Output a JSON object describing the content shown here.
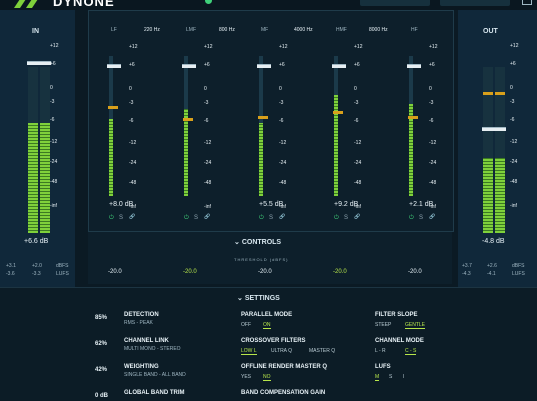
{
  "app": {
    "brand": "DYNONE"
  },
  "input": {
    "title": "IN",
    "scale": [
      "+12",
      "+6",
      "0",
      "-3",
      "-6",
      "-12",
      "-24",
      "-48",
      "-inf"
    ],
    "gain_readout": "+6.6 dB",
    "stats": [
      "+3.1",
      "+2.0",
      "dBFS",
      "-3.6",
      "-3.3",
      "LUFS"
    ]
  },
  "output": {
    "title": "OUT",
    "gain_readout": "-4.8 dB",
    "stats": [
      "+3.7",
      "+2.6",
      "dBFS",
      "-4.3",
      "-4.1",
      "LUFS"
    ]
  },
  "bands": [
    {
      "name": "LF",
      "gain": "+8.0 dB",
      "threshold": "-20.0",
      "active": false
    },
    {
      "name": "LMF",
      "gain": "",
      "threshold": "-20.0",
      "active": true
    },
    {
      "name": "MF",
      "gain": "+5.5 dB",
      "threshold": "-20.0",
      "active": false
    },
    {
      "name": "HMF",
      "gain": "+9.2 dB",
      "threshold": "-20.0",
      "active": true
    },
    {
      "name": "HF",
      "gain": "+2.1 dB",
      "threshold": "-20.0",
      "active": false
    }
  ],
  "crossovers": [
    "220 Hz",
    "800 Hz",
    "4000 Hz",
    "8000 Hz"
  ],
  "band_scale": [
    "+12",
    "+6",
    "0",
    "-3",
    "-6",
    "-12",
    "-24",
    "-48",
    "-inf"
  ],
  "band_icons": {
    "power": "⏻",
    "solo": "S",
    "link": "🔗"
  },
  "controls": {
    "label": "CONTROLS",
    "threshold_label": "THRESHOLD (dBFS)"
  },
  "settings": {
    "label": "SETTINGS",
    "left": [
      {
        "pct": "85%",
        "title": "DETECTION",
        "sub": "RMS - PEAK"
      },
      {
        "pct": "62%",
        "title": "CHANNEL LINK",
        "sub": "MULTI MONO - STEREO"
      },
      {
        "pct": "42%",
        "title": "WEIGHTING",
        "sub": "SINGLE BAND - ALL BAND"
      },
      {
        "pct": "0 dB",
        "title": "GLOBAL BAND TRIM",
        "sub": ""
      }
    ],
    "mid": [
      {
        "title": "PARALLEL MODE",
        "opts": [
          "OFF",
          "ON"
        ],
        "on": 1
      },
      {
        "title": "CROSSOVER FILTERS",
        "opts": [
          "LOW L",
          "ULTRA Q",
          "MASTER Q"
        ],
        "on": 0
      },
      {
        "title": "OFFLINE RENDER MASTER Q",
        "opts": [
          "YES",
          "NO"
        ],
        "on": 1
      },
      {
        "title": "BAND COMPENSATION GAIN",
        "opts": [],
        "on": -1
      }
    ],
    "right": [
      {
        "title": "FILTER SLOPE",
        "opts": [
          "STEEP",
          "GENTLE"
        ],
        "on": 1
      },
      {
        "title": "CHANNEL MODE",
        "opts": [
          "L - R",
          "C - S"
        ],
        "on": 1
      },
      {
        "title": "LUFS",
        "opts": [
          "M",
          "S",
          "I"
        ],
        "on": 0
      }
    ]
  },
  "colors": {
    "meter_green": "#7fd13b",
    "threshold": "#d9a01b",
    "accent": "#b7e64a",
    "bg": "#0b1a24"
  }
}
